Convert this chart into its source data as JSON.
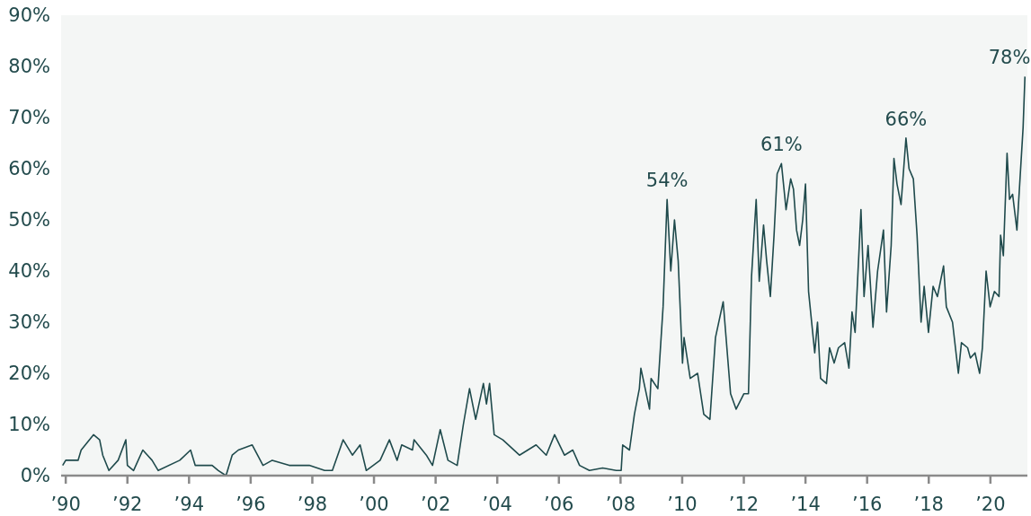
{
  "chart_data": {
    "type": "line",
    "xlim": [
      1989.85,
      2021.2
    ],
    "ylim": [
      0,
      90
    ],
    "xticks": [
      {
        "value": 1990,
        "label": "’90"
      },
      {
        "value": 1992,
        "label": "’92"
      },
      {
        "value": 1994,
        "label": "’94"
      },
      {
        "value": 1996,
        "label": "’96"
      },
      {
        "value": 1998,
        "label": "’98"
      },
      {
        "value": 2000,
        "label": "’00"
      },
      {
        "value": 2002,
        "label": "’02"
      },
      {
        "value": 2004,
        "label": "’04"
      },
      {
        "value": 2006,
        "label": "’06"
      },
      {
        "value": 2008,
        "label": "’08"
      },
      {
        "value": 2010,
        "label": "’10"
      },
      {
        "value": 2012,
        "label": "’12"
      },
      {
        "value": 2014,
        "label": "’14"
      },
      {
        "value": 2016,
        "label": "’16"
      },
      {
        "value": 2018,
        "label": "’18"
      },
      {
        "value": 2020,
        "label": "’20"
      }
    ],
    "yticks": [
      {
        "value": 0,
        "label": "0%"
      },
      {
        "value": 10,
        "label": "10%"
      },
      {
        "value": 20,
        "label": "20%"
      },
      {
        "value": 30,
        "label": "30%"
      },
      {
        "value": 40,
        "label": "40%"
      },
      {
        "value": 50,
        "label": "50%"
      },
      {
        "value": 60,
        "label": "60%"
      },
      {
        "value": 70,
        "label": "70%"
      },
      {
        "value": 80,
        "label": "80%"
      },
      {
        "value": 90,
        "label": "90%"
      }
    ],
    "grid": false,
    "marker": "none",
    "line_style": "solid",
    "series": [
      {
        "color": "#1f4a4c",
        "x": [
          1989.9,
          1990,
          1990.2,
          1990.4,
          1990.5,
          1990.9,
          1991.1,
          1991.2,
          1991.4,
          1991.7,
          1991.95,
          1992,
          1992.2,
          1992.5,
          1992.8,
          1993,
          1993.7,
          1994.05,
          1994.2,
          1994.75,
          1994.95,
          1995.2,
          1995.4,
          1995.6,
          1996.05,
          1996.4,
          1996.7,
          1997.25,
          1997.9,
          1998.4,
          1998.65,
          1999,
          1999.3,
          1999.55,
          1999.75,
          2000.2,
          2000.5,
          2000.75,
          2000.9,
          2001.25,
          2001.3,
          2001.7,
          2001.9,
          2002.15,
          2002.4,
          2002.7,
          2002.9,
          2003.1,
          2003.3,
          2003.55,
          2003.65,
          2003.75,
          2003.9,
          2004.18,
          2004.72,
          2005.26,
          2005.59,
          2005.86,
          2006.18,
          2006.45,
          2006.67,
          2006.99,
          2007.42,
          2007.86,
          2008.02,
          2008.07,
          2008.29,
          2008.45,
          2008.61,
          2008.66,
          2008.94,
          2008.99,
          2009.21,
          2009.38,
          2009.51,
          2009.63,
          2009.75,
          2009.87,
          2010.01,
          2010.06,
          2010.26,
          2010.5,
          2010.7,
          2010.9,
          2011.08,
          2011.33,
          2011.57,
          2011.75,
          2012,
          2012.15,
          2012.25,
          2012.4,
          2012.5,
          2012.64,
          2012.74,
          2012.86,
          2012.98,
          2013.08,
          2013.22,
          2013.37,
          2013.52,
          2013.61,
          2013.71,
          2013.81,
          2013.91,
          2014,
          2014.1,
          2014.3,
          2014.39,
          2014.49,
          2014.68,
          2014.78,
          2014.93,
          2015.07,
          2015.27,
          2015.41,
          2015.51,
          2015.61,
          2015.8,
          2015.9,
          2016.03,
          2016.19,
          2016.34,
          2016.53,
          2016.63,
          2016.78,
          2016.87,
          2016.97,
          2017.1,
          2017.26,
          2017.36,
          2017.5,
          2017.62,
          2017.75,
          2017.85,
          2017.99,
          2018.14,
          2018.28,
          2018.48,
          2018.57,
          2018.77,
          2018.96,
          2019.06,
          2019.26,
          2019.35,
          2019.5,
          2019.65,
          2019.74,
          2019.86,
          2019.99,
          2020.13,
          2020.28,
          2020.33,
          2020.42,
          2020.54,
          2020.62,
          2020.72,
          2020.86,
          2020.96,
          2021.06,
          2021.12
        ],
        "values": [
          2,
          3,
          3,
          3,
          5,
          8,
          7,
          4,
          1,
          3,
          7,
          2,
          1,
          5,
          3,
          1,
          3,
          5,
          2,
          2,
          1,
          0,
          4,
          5,
          6,
          2,
          3,
          2,
          2,
          1,
          1,
          7,
          4,
          6,
          1,
          3,
          7,
          3,
          6,
          5,
          7,
          4,
          2,
          9,
          3,
          2,
          10,
          17,
          11,
          18,
          14,
          18,
          8,
          7,
          4,
          6,
          4,
          8,
          4,
          5,
          2,
          1,
          1.5,
          1,
          1,
          6,
          5,
          12,
          17,
          21,
          13,
          19,
          17,
          33,
          54,
          40,
          50,
          42,
          22,
          27,
          19,
          20,
          12,
          11,
          27,
          34,
          16,
          13,
          16,
          16,
          39,
          54,
          38,
          49,
          42,
          35,
          47,
          59,
          61,
          52,
          58,
          56,
          48,
          45,
          50,
          57,
          36,
          24,
          30,
          19,
          18,
          25,
          22,
          25,
          26,
          21,
          32,
          28,
          52,
          35,
          45,
          29,
          40,
          48,
          32,
          45,
          62,
          57,
          53,
          66,
          60,
          58,
          47,
          30,
          37,
          28,
          37,
          35,
          41,
          33,
          30,
          20,
          26,
          25,
          23,
          24,
          20,
          25,
          40,
          33,
          36,
          35,
          47,
          43,
          63,
          54,
          55,
          48,
          58,
          68,
          78
        ]
      }
    ],
    "annotations": [
      {
        "text": "54%",
        "x": 2009.51,
        "y": 54
      },
      {
        "text": "61%",
        "x": 2013.22,
        "y": 61
      },
      {
        "text": "66%",
        "x": 2017.26,
        "y": 66
      },
      {
        "text": "78%",
        "x": 2021.12,
        "y": 78
      }
    ]
  }
}
